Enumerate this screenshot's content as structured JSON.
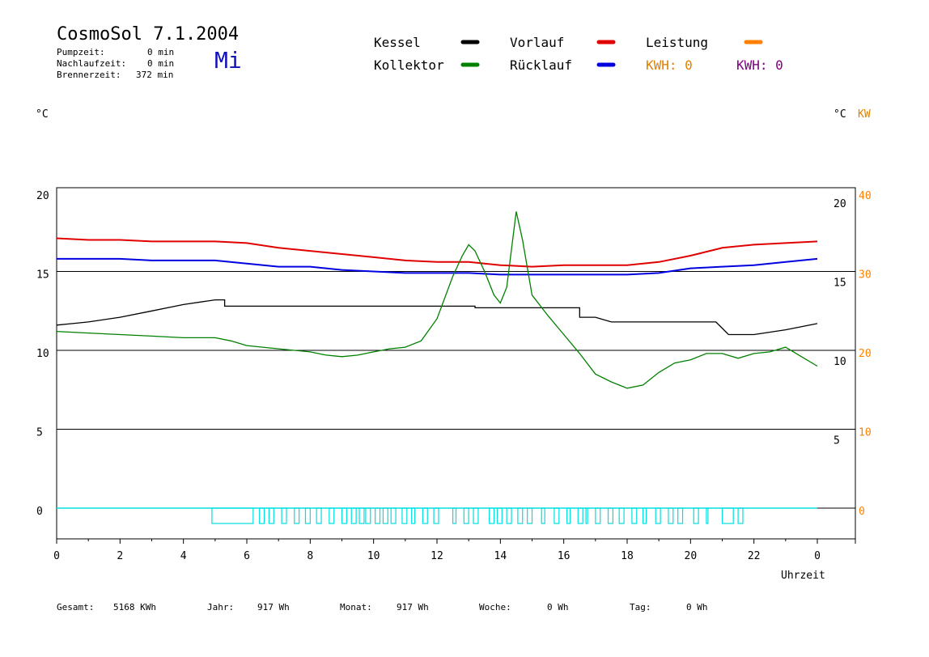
{
  "header": {
    "title": "CosmoSol 7.1.2004",
    "day": "Mi",
    "pumpzeit_label": "Pumpzeit:",
    "pumpzeit_value": "0 min",
    "nachlaufzeit_label": "Nachlaufzeit:",
    "nachlaufzeit_value": "0 min",
    "brennerzeit_label": "Brennerzeit:",
    "brennerzeit_value": "372 min"
  },
  "legend": {
    "kessel": "Kessel",
    "kollektor": "Kollektor",
    "vorlauf": "Vorlauf",
    "ruecklauf": "Rücklauf",
    "leistung": "Leistung",
    "kwh1": "KWH: 0",
    "kwh2": "KWH: 0"
  },
  "units": {
    "left": "°C",
    "right": "°C",
    "right_kw": "KW"
  },
  "footer": {
    "gesamt_label": "Gesamt:",
    "gesamt_value": "5168 KWh",
    "jahr_label": "Jahr:",
    "jahr_value": "917 Wh",
    "monat_label": "Monat:",
    "monat_value": "917 Wh",
    "woche_label": "Woche:",
    "woche_value": "0 Wh",
    "tag_label": "Tag:",
    "tag_value": "0 Wh"
  },
  "chart_data": {
    "type": "line",
    "title": "CosmoSol 7.1.2004",
    "xlabel": "Uhrzeit",
    "ylabel": "°C",
    "xlim": [
      0,
      24
    ],
    "ylim": [
      -4,
      20
    ],
    "x_tick_labels": [
      "0",
      "2",
      "4",
      "6",
      "8",
      "10",
      "12",
      "14",
      "16",
      "18",
      "20",
      "22",
      "0"
    ],
    "y_left_ticks": [
      "20",
      "15",
      "10",
      "5",
      "0"
    ],
    "y_right_ticks": [
      "20",
      "15",
      "10",
      "5"
    ],
    "kw_ticks": [
      "40",
      "30",
      "20",
      "10",
      "0"
    ],
    "grid": true,
    "colors": {
      "kessel": "#000000",
      "kollektor": "#008000",
      "vorlauf": "#e00000",
      "ruecklauf": "#0000e0",
      "leistung": "#ff8000",
      "kwh2": "#800080",
      "pump": "#00e0e0"
    },
    "series": [
      {
        "name": "Vorlauf",
        "x": [
          0,
          1,
          2,
          3,
          4,
          5,
          6,
          7,
          8,
          9,
          10,
          11,
          12,
          13,
          14,
          15,
          16,
          17,
          18,
          19,
          20,
          21,
          22,
          23,
          24
        ],
        "y": [
          17.1,
          17.0,
          17.0,
          16.9,
          16.9,
          16.9,
          16.8,
          16.5,
          16.3,
          16.1,
          15.9,
          15.7,
          15.6,
          15.6,
          15.4,
          15.3,
          15.4,
          15.4,
          15.4,
          15.6,
          16.0,
          16.5,
          16.7,
          16.8,
          16.9
        ]
      },
      {
        "name": "Rücklauf",
        "x": [
          0,
          1,
          2,
          3,
          4,
          5,
          6,
          7,
          8,
          9,
          10,
          11,
          12,
          13,
          14,
          15,
          16,
          17,
          18,
          19,
          20,
          21,
          22,
          23,
          24
        ],
        "y": [
          15.8,
          15.8,
          15.8,
          15.7,
          15.7,
          15.7,
          15.5,
          15.3,
          15.3,
          15.1,
          15.0,
          14.9,
          14.9,
          14.9,
          14.8,
          14.8,
          14.8,
          14.8,
          14.8,
          14.9,
          15.2,
          15.3,
          15.4,
          15.6,
          15.8
        ]
      },
      {
        "name": "Kessel",
        "x": [
          0,
          0.5,
          1,
          2,
          3,
          4,
          5,
          5.3,
          5.3,
          6,
          8,
          10,
          12,
          13.2,
          13.2,
          15,
          16,
          16.5,
          16.5,
          17,
          17.5,
          18,
          19,
          20,
          20.8,
          21.2,
          22,
          23,
          24
        ],
        "y": [
          11.6,
          11.7,
          11.8,
          12.1,
          12.5,
          12.9,
          13.2,
          13.2,
          12.8,
          12.8,
          12.8,
          12.8,
          12.8,
          12.8,
          12.7,
          12.7,
          12.7,
          12.7,
          12.1,
          12.1,
          11.8,
          11.8,
          11.8,
          11.8,
          11.8,
          11.0,
          11.0,
          11.3,
          11.7
        ]
      },
      {
        "name": "Kollektor",
        "x": [
          0,
          1,
          2,
          3,
          4,
          5,
          5.5,
          6,
          7,
          8,
          8.5,
          9,
          9.5,
          10,
          10.5,
          11,
          11.5,
          12,
          12.5,
          12.8,
          13.0,
          13.2,
          13.5,
          13.8,
          14.0,
          14.2,
          14.5,
          14.7,
          15.0,
          15.5,
          16,
          16.5,
          17,
          17.5,
          18,
          18.5,
          19,
          19.5,
          20,
          20.5,
          21,
          21.5,
          22,
          22.5,
          23,
          23.5,
          24
        ],
        "y": [
          11.2,
          11.1,
          11.0,
          10.9,
          10.8,
          10.8,
          10.6,
          10.3,
          10.1,
          9.9,
          9.7,
          9.6,
          9.7,
          9.9,
          10.1,
          10.2,
          10.6,
          12.0,
          14.7,
          16.0,
          16.7,
          16.3,
          15.0,
          13.5,
          13.0,
          14.0,
          18.8,
          17.0,
          13.5,
          12.2,
          11.0,
          9.8,
          8.5,
          8.0,
          7.6,
          7.8,
          8.6,
          9.2,
          9.4,
          9.8,
          9.8,
          9.5,
          9.8,
          9.9,
          10.2,
          9.6,
          9.0
        ]
      }
    ],
    "pump_intervals": [
      [
        4.9,
        6.2
      ],
      [
        6.4,
        6.55
      ],
      [
        6.7,
        6.85
      ],
      [
        7.1,
        7.25
      ],
      [
        7.5,
        7.65
      ],
      [
        7.85,
        8.0
      ],
      [
        8.2,
        8.35
      ],
      [
        8.6,
        8.75
      ],
      [
        9.0,
        9.15
      ],
      [
        9.3,
        9.45
      ],
      [
        9.55,
        9.7
      ],
      [
        9.75,
        9.9
      ],
      [
        10.05,
        10.2
      ],
      [
        10.3,
        10.45
      ],
      [
        10.55,
        10.7
      ],
      [
        10.9,
        11.05
      ],
      [
        11.2,
        11.3
      ],
      [
        11.55,
        11.7
      ],
      [
        11.9,
        12.05
      ],
      [
        12.5,
        12.6
      ],
      [
        12.85,
        13.0
      ],
      [
        13.15,
        13.3
      ],
      [
        13.65,
        13.8
      ],
      [
        13.9,
        14.05
      ],
      [
        14.2,
        14.35
      ],
      [
        14.55,
        14.7
      ],
      [
        14.85,
        15.0
      ],
      [
        15.3,
        15.4
      ],
      [
        15.7,
        15.85
      ],
      [
        16.1,
        16.2
      ],
      [
        16.45,
        16.6
      ],
      [
        16.7,
        16.75
      ],
      [
        17.0,
        17.15
      ],
      [
        17.4,
        17.55
      ],
      [
        17.75,
        17.9
      ],
      [
        18.15,
        18.3
      ],
      [
        18.5,
        18.6
      ],
      [
        18.9,
        19.05
      ],
      [
        19.3,
        19.45
      ],
      [
        19.6,
        19.75
      ],
      [
        20.1,
        20.25
      ],
      [
        20.5,
        20.55
      ],
      [
        21.0,
        21.35
      ],
      [
        21.5,
        21.65
      ]
    ]
  }
}
